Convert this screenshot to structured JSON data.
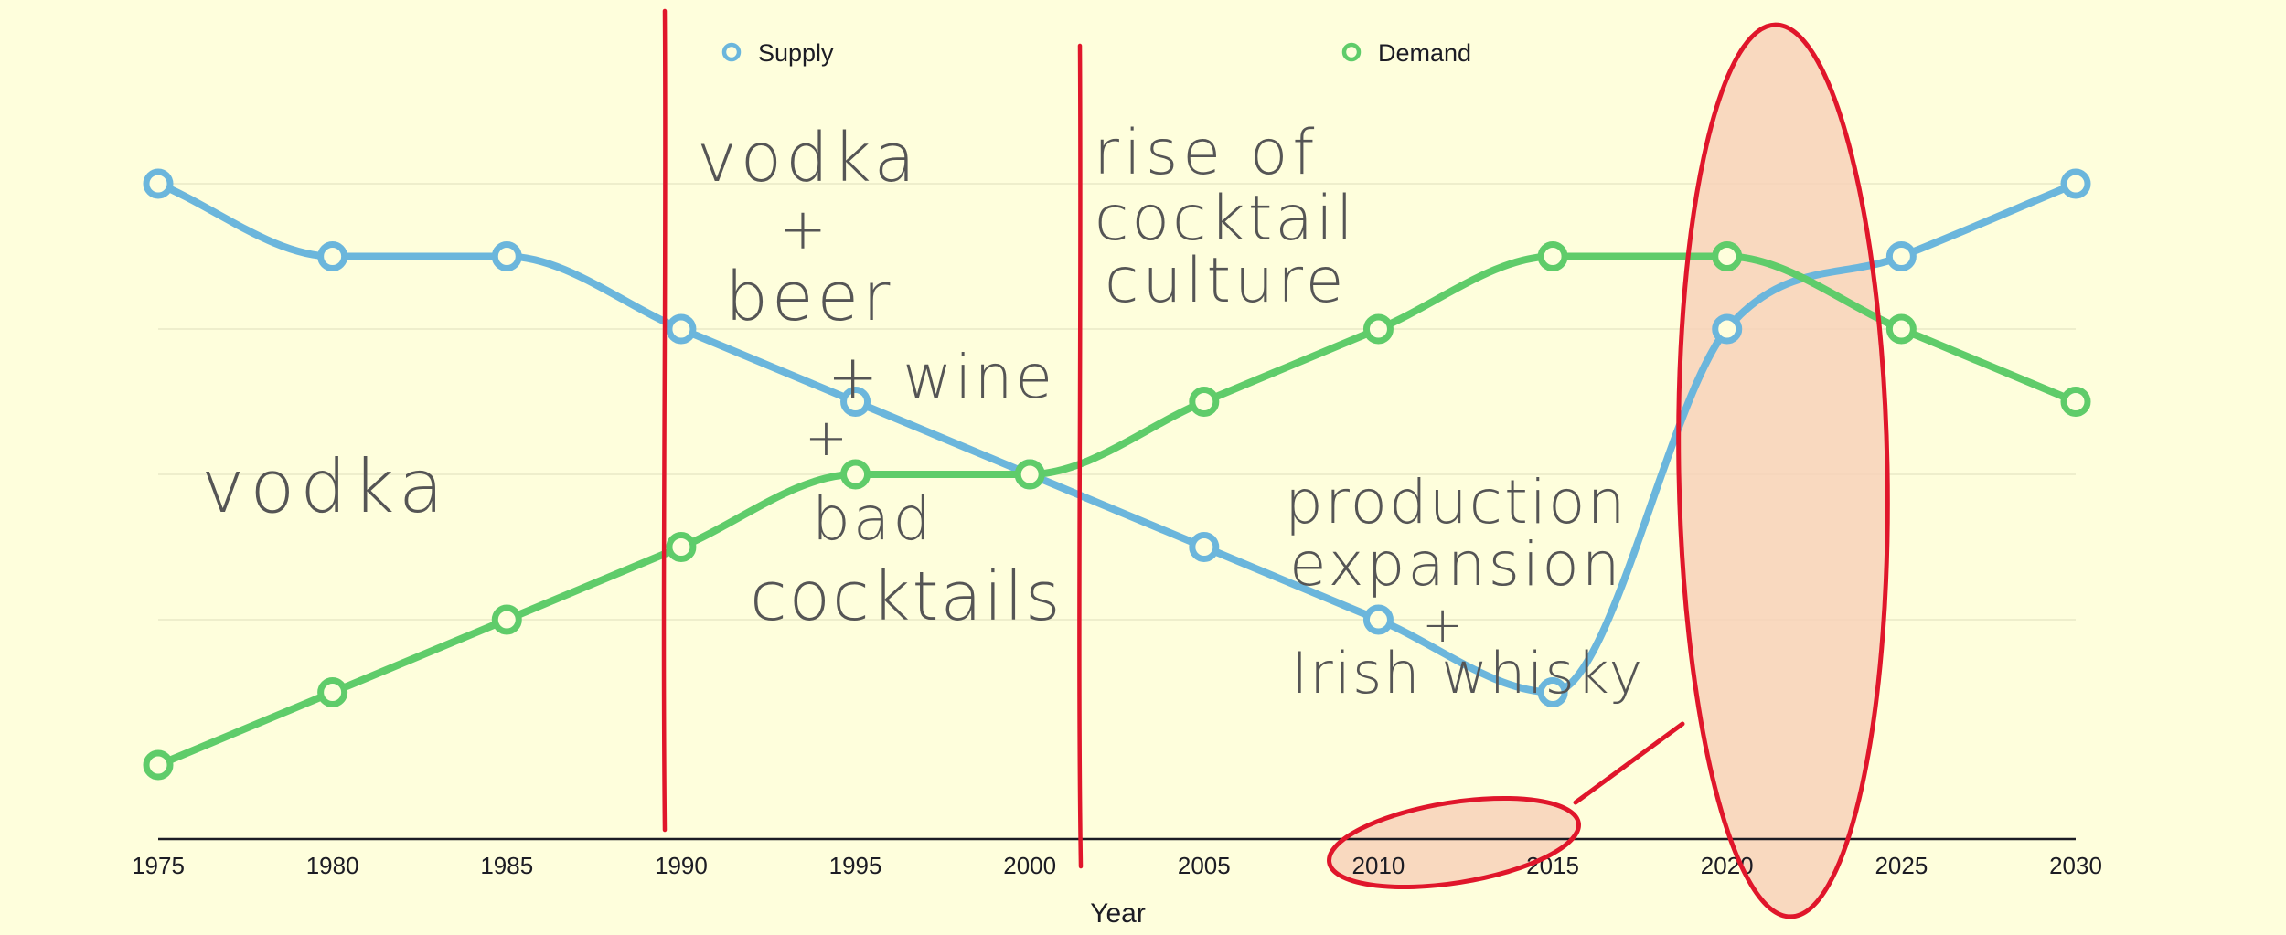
{
  "chart_data": {
    "type": "line",
    "title": "",
    "xlabel": "Year",
    "ylabel": "",
    "x": [
      1975,
      1980,
      1985,
      1990,
      1995,
      2000,
      2005,
      2010,
      2015,
      2020,
      2025,
      2030
    ],
    "x_tick_labels": [
      "1975",
      "1980",
      "1985",
      "1990",
      "1995",
      "2000",
      "2005",
      "2010",
      "2015",
      "2020",
      "2025",
      "2030"
    ],
    "ylim": [
      0,
      9
    ],
    "y_ticks_shown": false,
    "grid": true,
    "legend_position": "top",
    "series": [
      {
        "name": "Supply",
        "color": "#6bb6dc",
        "values": [
          9,
          8,
          8,
          7,
          6,
          5,
          4,
          3,
          2,
          7,
          8,
          9
        ]
      },
      {
        "name": "Demand",
        "color": "#5fcc6a",
        "values": [
          1,
          2,
          3,
          4,
          5,
          5,
          6,
          7,
          8,
          8,
          7,
          6
        ]
      }
    ],
    "annotations": {
      "era_lines_after_year": [
        1989.8,
        2001.5
      ],
      "notes": [
        {
          "id": "vodka",
          "text": "vodka"
        },
        {
          "id": "vodka-mix-1",
          "text": "vodka"
        },
        {
          "id": "vodka-mix-2",
          "text": "+"
        },
        {
          "id": "vodka-mix-3",
          "text": "beer"
        },
        {
          "id": "vodka-mix-4",
          "text": "+ wine"
        },
        {
          "id": "vodka-mix-5",
          "text": "+"
        },
        {
          "id": "vodka-mix-6",
          "text": "bad"
        },
        {
          "id": "vodka-mix-7",
          "text": "cocktails"
        },
        {
          "id": "cocktail-1",
          "text": "rise of"
        },
        {
          "id": "cocktail-2",
          "text": "cocktail"
        },
        {
          "id": "cocktail-3",
          "text": "culture"
        },
        {
          "id": "production-1",
          "text": "production"
        },
        {
          "id": "production-2",
          "text": "expansion"
        },
        {
          "id": "production-3",
          "text": "+"
        },
        {
          "id": "production-4",
          "text": "Irish whisky"
        }
      ],
      "highlight_color": "#e0162b",
      "highlight_fill": "#f8d0b8"
    }
  }
}
